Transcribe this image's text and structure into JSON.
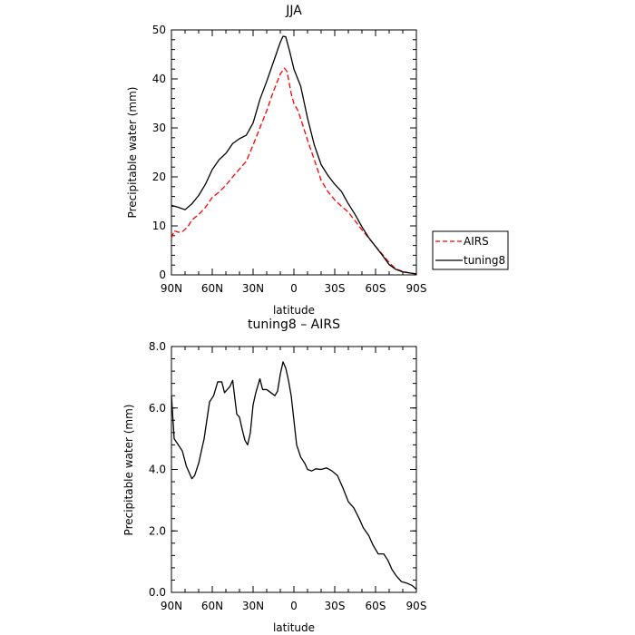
{
  "chart_data": [
    {
      "type": "line",
      "title": "JJA",
      "xlabel": "latitude",
      "ylabel": "Precipitable water (mm)",
      "x_ticks": [
        "90N",
        "60N",
        "30N",
        "0",
        "30S",
        "60S",
        "90S"
      ],
      "y_ticks": [
        "0",
        "10",
        "20",
        "30",
        "40",
        "50"
      ],
      "xlim": [
        90,
        -90
      ],
      "ylim": [
        0,
        50
      ],
      "legend_position": "right",
      "series": [
        {
          "name": "AIRS",
          "style": "dashed",
          "color": "#ff0000",
          "points": [
            [
              90,
              7.5
            ],
            [
              88,
              9.0
            ],
            [
              85,
              8.7
            ],
            [
              82,
              8.8
            ],
            [
              78,
              9.8
            ],
            [
              75,
              11.2
            ],
            [
              70,
              12.3
            ],
            [
              65,
              13.8
            ],
            [
              60,
              15.8
            ],
            [
              55,
              16.9
            ],
            [
              50,
              18.3
            ],
            [
              45,
              20.0
            ],
            [
              40,
              21.6
            ],
            [
              35,
              23.2
            ],
            [
              30,
              26.5
            ],
            [
              25,
              30.0
            ],
            [
              20,
              33.5
            ],
            [
              15,
              37.5
            ],
            [
              10,
              41.0
            ],
            [
              7,
              42.2
            ],
            [
              5,
              41.5
            ],
            [
              2,
              37.0
            ],
            [
              0,
              35.0
            ],
            [
              -3,
              33.5
            ],
            [
              -6,
              31.0
            ],
            [
              -10,
              27.5
            ],
            [
              -15,
              23.5
            ],
            [
              -20,
              19.3
            ],
            [
              -25,
              17.0
            ],
            [
              -30,
              15.3
            ],
            [
              -35,
              14.0
            ],
            [
              -40,
              12.8
            ],
            [
              -45,
              11.0
            ],
            [
              -50,
              9.2
            ],
            [
              -55,
              7.5
            ],
            [
              -60,
              5.8
            ],
            [
              -65,
              4.2
            ],
            [
              -70,
              2.5
            ],
            [
              -75,
              1.2
            ],
            [
              -80,
              0.7
            ],
            [
              -85,
              0.4
            ],
            [
              -90,
              0.2
            ]
          ]
        },
        {
          "name": "tuning8",
          "style": "solid",
          "color": "#000000",
          "points": [
            [
              90,
              14.2
            ],
            [
              85,
              13.8
            ],
            [
              80,
              13.3
            ],
            [
              75,
              14.5
            ],
            [
              70,
              16.2
            ],
            [
              65,
              18.5
            ],
            [
              60,
              21.5
            ],
            [
              55,
              23.5
            ],
            [
              50,
              24.8
            ],
            [
              45,
              26.8
            ],
            [
              40,
              27.8
            ],
            [
              35,
              28.5
            ],
            [
              30,
              31.0
            ],
            [
              25,
              35.8
            ],
            [
              20,
              39.5
            ],
            [
              15,
              43.5
            ],
            [
              10,
              47.5
            ],
            [
              8,
              48.7
            ],
            [
              6,
              48.6
            ],
            [
              3,
              45.5
            ],
            [
              0,
              42.0
            ],
            [
              -5,
              38.5
            ],
            [
              -10,
              32.0
            ],
            [
              -15,
              26.5
            ],
            [
              -20,
              22.5
            ],
            [
              -25,
              20.3
            ],
            [
              -30,
              18.5
            ],
            [
              -35,
              17.0
            ],
            [
              -40,
              14.5
            ],
            [
              -45,
              12.3
            ],
            [
              -50,
              9.8
            ],
            [
              -55,
              7.6
            ],
            [
              -60,
              5.8
            ],
            [
              -65,
              4.0
            ],
            [
              -70,
              2.1
            ],
            [
              -75,
              1.1
            ],
            [
              -80,
              0.6
            ],
            [
              -85,
              0.4
            ],
            [
              -90,
              0.2
            ]
          ]
        }
      ]
    },
    {
      "type": "line",
      "title": "tuning8 – AIRS",
      "xlabel": "latitude",
      "ylabel": "Precipitable water (mm)",
      "x_ticks": [
        "90N",
        "60N",
        "30N",
        "0",
        "30S",
        "60S",
        "90S"
      ],
      "y_ticks": [
        "0.0",
        "2.0",
        "4.0",
        "6.0",
        "8.0"
      ],
      "xlim": [
        90,
        -90
      ],
      "ylim": [
        0,
        8
      ],
      "series": [
        {
          "name": "",
          "style": "solid",
          "color": "#000000",
          "points": [
            [
              90,
              6.4
            ],
            [
              88,
              5.0
            ],
            [
              85,
              4.8
            ],
            [
              82,
              4.6
            ],
            [
              79,
              4.1
            ],
            [
              75,
              3.7
            ],
            [
              73,
              3.8
            ],
            [
              70,
              4.2
            ],
            [
              66,
              5.0
            ],
            [
              62,
              6.2
            ],
            [
              59,
              6.4
            ],
            [
              56,
              6.85
            ],
            [
              53,
              6.85
            ],
            [
              51,
              6.5
            ],
            [
              47,
              6.7
            ],
            [
              45,
              6.9
            ],
            [
              42,
              5.8
            ],
            [
              40,
              5.7
            ],
            [
              38,
              5.3
            ],
            [
              36,
              4.95
            ],
            [
              34,
              4.8
            ],
            [
              32,
              5.2
            ],
            [
              30,
              6.1
            ],
            [
              28,
              6.5
            ],
            [
              25,
              6.95
            ],
            [
              23,
              6.6
            ],
            [
              20,
              6.6
            ],
            [
              17,
              6.5
            ],
            [
              14,
              6.4
            ],
            [
              12,
              6.55
            ],
            [
              10,
              7.1
            ],
            [
              8,
              7.5
            ],
            [
              6,
              7.3
            ],
            [
              4,
              6.9
            ],
            [
              2,
              6.4
            ],
            [
              0,
              5.6
            ],
            [
              -2,
              4.8
            ],
            [
              -5,
              4.4
            ],
            [
              -8,
              4.2
            ],
            [
              -10,
              4.0
            ],
            [
              -13,
              3.95
            ],
            [
              -16,
              4.02
            ],
            [
              -20,
              4.0
            ],
            [
              -24,
              4.05
            ],
            [
              -28,
              3.95
            ],
            [
              -32,
              3.8
            ],
            [
              -36,
              3.4
            ],
            [
              -40,
              2.95
            ],
            [
              -44,
              2.75
            ],
            [
              -48,
              2.4
            ],
            [
              -51,
              2.1
            ],
            [
              -55,
              1.85
            ],
            [
              -58,
              1.55
            ],
            [
              -62,
              1.25
            ],
            [
              -66,
              1.25
            ],
            [
              -69,
              1.05
            ],
            [
              -72,
              0.75
            ],
            [
              -75,
              0.55
            ],
            [
              -79,
              0.35
            ],
            [
              -83,
              0.3
            ],
            [
              -87,
              0.22
            ],
            [
              -90,
              0.1
            ]
          ]
        }
      ]
    }
  ]
}
